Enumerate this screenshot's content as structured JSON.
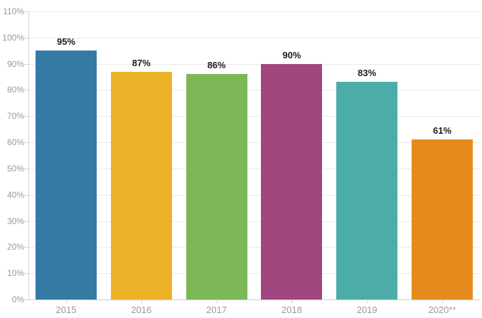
{
  "chart_data": {
    "type": "bar",
    "title": "",
    "xlabel": "",
    "ylabel": "",
    "categories": [
      "2015",
      "2016",
      "2017",
      "2018",
      "2019",
      "2020**"
    ],
    "values": [
      95,
      87,
      86,
      90,
      83,
      61
    ],
    "value_labels": [
      "95%",
      "87%",
      "86%",
      "90%",
      "83%",
      "61%"
    ],
    "bar_colors": [
      "#337aa4",
      "#ecb32a",
      "#7cb956",
      "#a1467e",
      "#4cada8",
      "#e78a1c"
    ],
    "ylim": [
      0,
      110
    ],
    "ytick_step": 10,
    "ytick_labels": [
      "0%",
      "10%",
      "20%",
      "30%",
      "40%",
      "50%",
      "60%",
      "70%",
      "80%",
      "90%",
      "100%",
      "110%"
    ],
    "grid": "horizontal-on",
    "legend": "none"
  },
  "colors": {
    "background": "#ffffff",
    "gridline": "#e9e9e9",
    "axis_line": "#cfcfcf",
    "axis_text": "#9a9a9a",
    "value_text": "#1d1d1d"
  }
}
